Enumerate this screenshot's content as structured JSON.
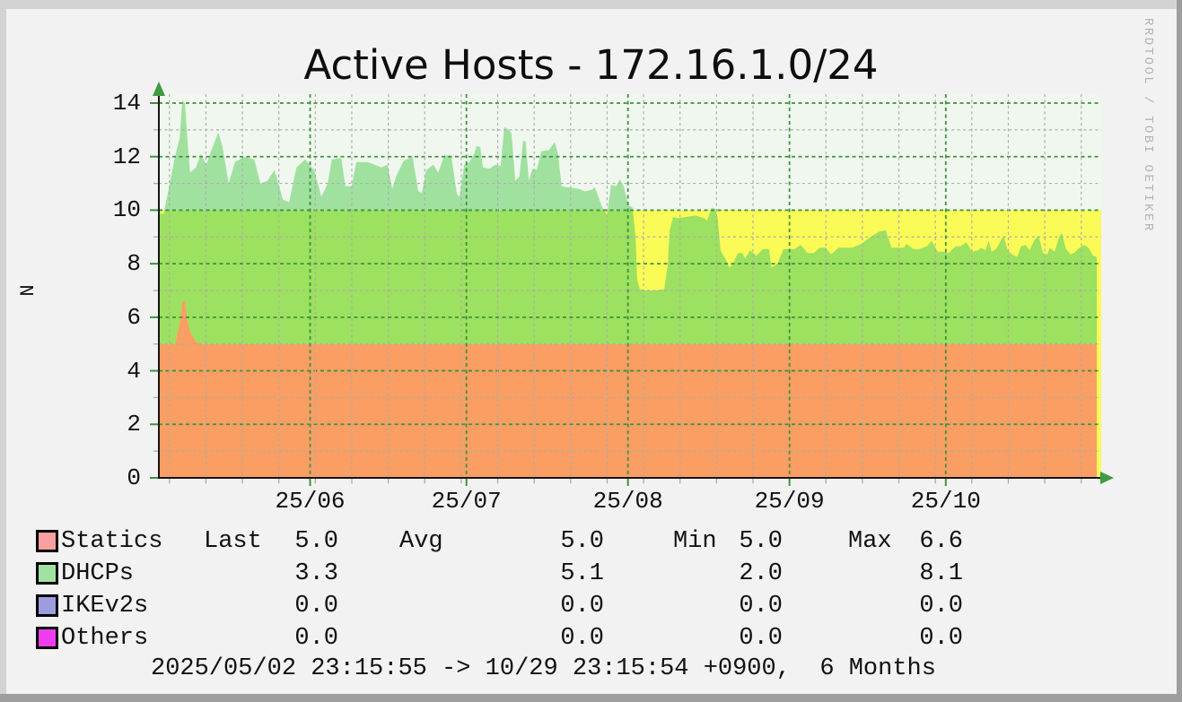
{
  "title": "Active Hosts - 172.16.1.0/24",
  "watermark": "RRDTOOL / TOBI OETIKER",
  "y_axis_label": "N",
  "footer": "2025/05/02 23:15:55 -> 10/29 23:15:54 +0900,  6 Months",
  "legend": {
    "headers": {
      "last": "Last",
      "avg": "Avg",
      "min": "Min",
      "max": "Max"
    },
    "rows": [
      {
        "name": "Statics",
        "color": "#F9A0A0",
        "last": "5.0",
        "avg": "5.0",
        "min": "5.0",
        "max": "6.6"
      },
      {
        "name": "DHCPs",
        "color": "#A1E2A1",
        "last": "3.3",
        "avg": "5.1",
        "min": "2.0",
        "max": "8.1"
      },
      {
        "name": "IKEv2s",
        "color": "#9C9CDE",
        "last": "0.0",
        "avg": "0.0",
        "min": "0.0",
        "max": "0.0"
      },
      {
        "name": "Others",
        "color": "#ED3DED",
        "last": "0.0",
        "avg": "0.0",
        "min": "0.0",
        "max": "0.0"
      }
    ]
  },
  "colors": {
    "canvas": "#F2F2F2",
    "plot_bg": "#F0F7EF",
    "warn_zone": "#FBFB58",
    "statics_area": "#FA9E63",
    "dhcps_area_below10": "#9CE15F",
    "dhcps_area_above10": "#A0E1A0",
    "grid_major": "#3F923F",
    "grid_minor": "#ACACAC",
    "axis": "#141414",
    "arrow": "#3E9B3E",
    "watermark_text": "#B3B3B3",
    "bevel_light": "#D3D3D3",
    "bevel_dark": "#9E9E9E"
  },
  "chart_data": {
    "type": "area",
    "stacked": true,
    "title": "Active Hosts - 172.16.1.0/24",
    "ylabel": "N",
    "x_start": "2025/05/02 23:15:55 +0900",
    "x_end": "2025/10/29 23:15:54 +0900",
    "x_range_days": [
      0,
      180
    ],
    "ylim": [
      0,
      14.33
    ],
    "y_ticks": [
      0,
      2,
      4,
      6,
      8,
      10,
      12,
      14
    ],
    "y_minor_ticks": [
      1,
      3,
      5,
      7,
      9,
      11,
      13
    ],
    "x_ticks": [
      {
        "d": 29.03,
        "label": "25/06"
      },
      {
        "d": 59.03,
        "label": "25/07"
      },
      {
        "d": 90.03,
        "label": "25/08"
      },
      {
        "d": 121.03,
        "label": "25/09"
      },
      {
        "d": 151.03,
        "label": "25/10"
      }
    ],
    "x_minor_tick_start_day": 2.03,
    "x_minor_tick_step_days": 7,
    "warn_band": {
      "from": 0,
      "to": 10
    },
    "grid": true,
    "legend_position": "bottom",
    "series_names": [
      "Statics",
      "DHCPs",
      "IKEv2s",
      "Others"
    ],
    "zero_series": [
      "IKEv2s",
      "Others"
    ],
    "points_format": [
      "day_offset",
      "statics",
      "dhcps"
    ],
    "points": [
      [
        0,
        5,
        4.9
      ],
      [
        0.9,
        5,
        4.85
      ],
      [
        1.9,
        5,
        5.8
      ],
      [
        3.1,
        5,
        7.0
      ],
      [
        4,
        5.8,
        6.9
      ],
      [
        4.5,
        6.6,
        7.5
      ],
      [
        5,
        6.6,
        7.4
      ],
      [
        5.5,
        5.9,
        6.7
      ],
      [
        6,
        5.45,
        5.95
      ],
      [
        7.1,
        5.1,
        6.5
      ],
      [
        8.1,
        5,
        7.1
      ],
      [
        9.1,
        5,
        6.7
      ],
      [
        10.2,
        5,
        7.3
      ],
      [
        11.4,
        5,
        7.9
      ],
      [
        12.2,
        5,
        7.4
      ],
      [
        13.4,
        5,
        6.0
      ],
      [
        14.6,
        5,
        6.8
      ],
      [
        16.4,
        5,
        7.0
      ],
      [
        18.3,
        5,
        6.9
      ],
      [
        19.5,
        5,
        6.0
      ],
      [
        20.8,
        5,
        6.1
      ],
      [
        22.2,
        5,
        6.5
      ],
      [
        23.8,
        5,
        5.4
      ],
      [
        25,
        5,
        5.3
      ],
      [
        26.4,
        5,
        6.6
      ],
      [
        28.1,
        5,
        6.9
      ],
      [
        29.8,
        5,
        6.5
      ],
      [
        31.2,
        5,
        5.5
      ],
      [
        32.4,
        5,
        6.0
      ],
      [
        33.2,
        5,
        6.9
      ],
      [
        35,
        5,
        6.95
      ],
      [
        35.8,
        5,
        5.9
      ],
      [
        37,
        5,
        5.9
      ],
      [
        37.9,
        5,
        6.8
      ],
      [
        40.1,
        5,
        6.8
      ],
      [
        42.7,
        5,
        6.6
      ],
      [
        43.9,
        5,
        6.7
      ],
      [
        44.8,
        5,
        5.8
      ],
      [
        45.6,
        5,
        6.3
      ],
      [
        47,
        5,
        6.85
      ],
      [
        48.7,
        5,
        7.0
      ],
      [
        49.8,
        5,
        5.7
      ],
      [
        50.5,
        5,
        5.65
      ],
      [
        51.3,
        5,
        6.5
      ],
      [
        52.7,
        5,
        6.7
      ],
      [
        53.6,
        5,
        6.4
      ],
      [
        54.8,
        5,
        7.05
      ],
      [
        56.1,
        5,
        7.05
      ],
      [
        57.2,
        5,
        5.6
      ],
      [
        57.7,
        5,
        5.5
      ],
      [
        58.6,
        5,
        6.7
      ],
      [
        59.6,
        5,
        6.8
      ],
      [
        60.5,
        5,
        7.1
      ],
      [
        61,
        5,
        7.4
      ],
      [
        61.7,
        5,
        7.35
      ],
      [
        62.2,
        5,
        6.6
      ],
      [
        63.4,
        5,
        6.55
      ],
      [
        64.6,
        5,
        6.7
      ],
      [
        65.6,
        5,
        6.65
      ],
      [
        66.3,
        5,
        8.1
      ],
      [
        67.2,
        5,
        8.0
      ],
      [
        67.7,
        5,
        7.85
      ],
      [
        68.4,
        5,
        6.1
      ],
      [
        69.2,
        5,
        6.25
      ],
      [
        69.9,
        5,
        7.6
      ],
      [
        70.4,
        5,
        7.55
      ],
      [
        71,
        5,
        6.1
      ],
      [
        71.7,
        5,
        6.55
      ],
      [
        72.5,
        5,
        6.5
      ],
      [
        73.4,
        5,
        7.2
      ],
      [
        74.9,
        5,
        7.25
      ],
      [
        76,
        5,
        7.55
      ],
      [
        76.6,
        5,
        7.1
      ],
      [
        77.3,
        5,
        5.9
      ],
      [
        78.5,
        5,
        5.85
      ],
      [
        80.6,
        5,
        5.8
      ],
      [
        81.8,
        5,
        5.7
      ],
      [
        82.9,
        5,
        5.75
      ],
      [
        83.7,
        5,
        5.85
      ],
      [
        85.1,
        5,
        5.1
      ],
      [
        86,
        5,
        4.8
      ],
      [
        86.8,
        5,
        5.95
      ],
      [
        87.8,
        5,
        5.9
      ],
      [
        88.5,
        5,
        6.15
      ],
      [
        89.2,
        5,
        5.9
      ],
      [
        90.1,
        5,
        5.2
      ],
      [
        90.9,
        5,
        5.1
      ],
      [
        91.5,
        5,
        4.0
      ],
      [
        91.8,
        5,
        2.4
      ],
      [
        92.3,
        5,
        2.05
      ],
      [
        93.5,
        5,
        2.0
      ],
      [
        95.3,
        5,
        2.0
      ],
      [
        97,
        5,
        2.05
      ],
      [
        97.7,
        5,
        3.0
      ],
      [
        98,
        5,
        4.2
      ],
      [
        98.7,
        5,
        4.75
      ],
      [
        99.5,
        5,
        4.7
      ],
      [
        101.3,
        5,
        4.75
      ],
      [
        103,
        5,
        4.8
      ],
      [
        104.7,
        5,
        4.7
      ],
      [
        105.2,
        5,
        4.6
      ],
      [
        106.1,
        5,
        5.1
      ],
      [
        106.8,
        5,
        5.05
      ],
      [
        107.3,
        5,
        4.65
      ],
      [
        107.8,
        5,
        3.5
      ],
      [
        108.7,
        5,
        3.2
      ],
      [
        109.5,
        5,
        2.85
      ],
      [
        110.2,
        5,
        3.0
      ],
      [
        111.1,
        5,
        3.4
      ],
      [
        112,
        5,
        3.4
      ],
      [
        112.5,
        5,
        3.2
      ],
      [
        113.5,
        5,
        3.5
      ],
      [
        114.7,
        5,
        3.3
      ],
      [
        115.9,
        5,
        3.55
      ],
      [
        117.1,
        5,
        3.55
      ],
      [
        117.6,
        5,
        2.85
      ],
      [
        118.7,
        5,
        3.0
      ],
      [
        119.9,
        5,
        3.55
      ],
      [
        122,
        5,
        3.55
      ],
      [
        123.2,
        5,
        3.7
      ],
      [
        124.5,
        5,
        3.4
      ],
      [
        125.7,
        5,
        3.4
      ],
      [
        126.8,
        5,
        3.6
      ],
      [
        128,
        5,
        3.6
      ],
      [
        129,
        5,
        3.35
      ],
      [
        130.5,
        5,
        3.6
      ],
      [
        133.1,
        5,
        3.6
      ],
      [
        134.9,
        5,
        3.75
      ],
      [
        136.6,
        5,
        4.0
      ],
      [
        138.3,
        5,
        4.2
      ],
      [
        139.5,
        5,
        4.25
      ],
      [
        140.6,
        5,
        3.6
      ],
      [
        141.8,
        5,
        3.6
      ],
      [
        143,
        5,
        3.6
      ],
      [
        143.5,
        5,
        3.75
      ],
      [
        144.7,
        5,
        3.55
      ],
      [
        146,
        5,
        3.55
      ],
      [
        147.4,
        5,
        3.65
      ],
      [
        148.3,
        5,
        3.85
      ],
      [
        149.5,
        5,
        3.45
      ],
      [
        150.7,
        5,
        3.45
      ],
      [
        151.6,
        5,
        3.4
      ],
      [
        152.1,
        5,
        3.5
      ],
      [
        152.9,
        5,
        3.65
      ],
      [
        153.8,
        5,
        3.65
      ],
      [
        155,
        5,
        3.8
      ],
      [
        156,
        5,
        3.45
      ],
      [
        157.3,
        5,
        3.5
      ],
      [
        157.8,
        5,
        3.6
      ],
      [
        158.6,
        5,
        3.5
      ],
      [
        159.3,
        5,
        3.85
      ],
      [
        159.8,
        5,
        3.45
      ],
      [
        160.7,
        5,
        3.55
      ],
      [
        162.1,
        5,
        4.05
      ],
      [
        162.9,
        5,
        3.5
      ],
      [
        163.8,
        5,
        3.35
      ],
      [
        164.7,
        5,
        3.25
      ],
      [
        165.5,
        5,
        3.65
      ],
      [
        166.4,
        5,
        3.7
      ],
      [
        167.1,
        5,
        3.5
      ],
      [
        168.1,
        5,
        3.9
      ],
      [
        168.8,
        5,
        4.05
      ],
      [
        169.7,
        5,
        3.4
      ],
      [
        170.5,
        5,
        3.35
      ],
      [
        171,
        5,
        3.6
      ],
      [
        171.9,
        5,
        3.45
      ],
      [
        172.8,
        5,
        4.0
      ],
      [
        173.3,
        5,
        4.15
      ],
      [
        174.1,
        5,
        3.55
      ],
      [
        175,
        5,
        3.35
      ],
      [
        175.7,
        5,
        3.4
      ],
      [
        176.7,
        5,
        3.6
      ],
      [
        177.6,
        5,
        3.7
      ],
      [
        178.4,
        5,
        3.6
      ],
      [
        179.3,
        5,
        3.3
      ],
      [
        180,
        5,
        3.25
      ]
    ]
  }
}
